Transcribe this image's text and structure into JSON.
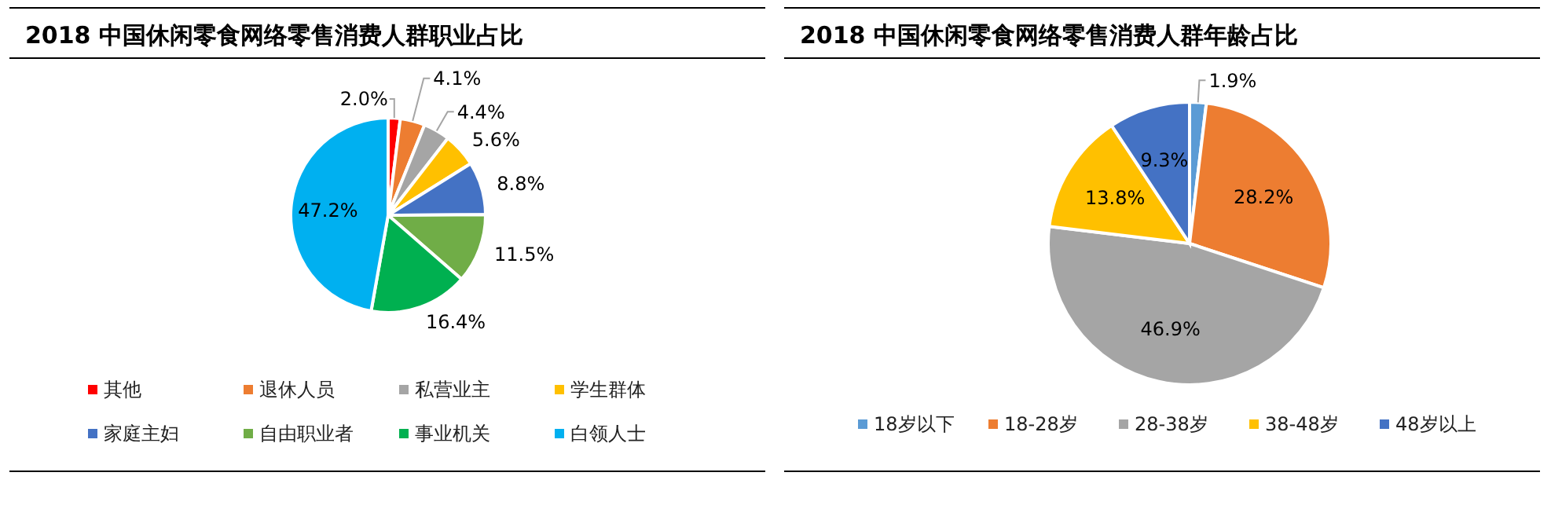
{
  "chart_data": [
    {
      "type": "pie",
      "title": "2018 中国休闲零食网络零售消费人群职业占比",
      "categories": [
        "其他",
        "退休人员",
        "私营业主",
        "学生群体",
        "家庭主妇",
        "自由职业者",
        "事业机关",
        "白领人士"
      ],
      "values": [
        2.0,
        4.1,
        4.4,
        5.6,
        8.8,
        11.5,
        16.4,
        47.2
      ],
      "value_labels": [
        "2.0%",
        "4.1%",
        "4.4%",
        "5.6%",
        "8.8%",
        "11.5%",
        "16.4%",
        "47.2%"
      ],
      "colors": [
        "#ff0000",
        "#ed7d31",
        "#a5a5a5",
        "#ffc000",
        "#4472c4",
        "#70ad47",
        "#00b050",
        "#00b0f0"
      ],
      "legend": "bottom"
    },
    {
      "type": "pie",
      "title": "2018 中国休闲零食网络零售消费人群年龄占比",
      "categories": [
        "18岁以下",
        "18-28岁",
        "28-38岁",
        "38-48岁",
        "48岁以上"
      ],
      "values": [
        1.9,
        28.2,
        46.9,
        13.8,
        9.3
      ],
      "value_labels": [
        "1.9%",
        "28.2%",
        "46.9%",
        "13.8%",
        "9.3%"
      ],
      "colors": [
        "#5b9bd5",
        "#ed7d31",
        "#a5a5a5",
        "#ffc000",
        "#4472c4"
      ],
      "legend": "bottom"
    }
  ]
}
